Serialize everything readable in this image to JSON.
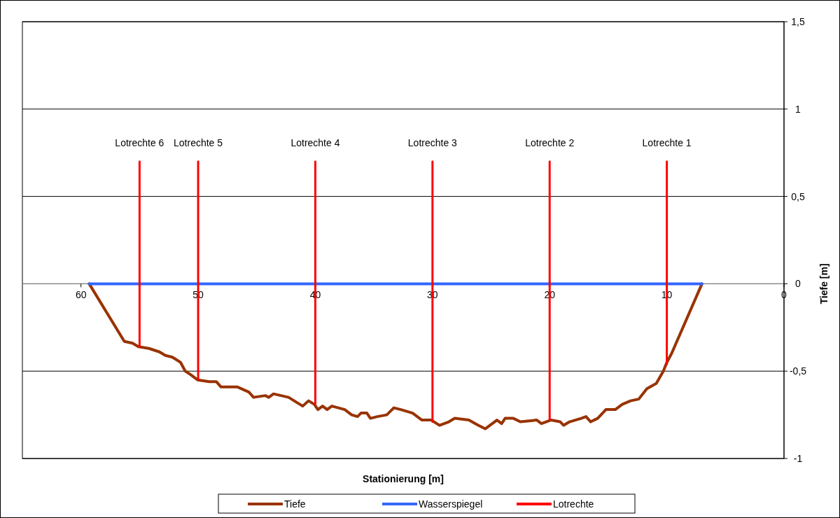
{
  "chart_data": {
    "type": "line",
    "xlabel": "Stationierung [m]",
    "ylabel": "Tiefe [m]",
    "xlim": [
      65,
      0
    ],
    "xticks": [
      60,
      50,
      40,
      30,
      20,
      10,
      0
    ],
    "ylim": [
      -1,
      1.5
    ],
    "yticks": [
      {
        "value": 1.5,
        "label": "1,5"
      },
      1,
      {
        "value": 0.5,
        "label": "0,5"
      },
      0,
      {
        "value": -0.5,
        "label": "-0,5"
      },
      -1
    ],
    "grid": "y",
    "legend": "bottom",
    "marker": "none",
    "line_style": "solid",
    "series": [
      {
        "name": "Tiefe",
        "color": "#993300",
        "x": [
          59.3,
          56.3,
          55.6,
          55.1,
          54.2,
          53.3,
          52.8,
          52.2,
          51.5,
          51.1,
          50.65,
          50.05,
          49.05,
          48.45,
          48.06,
          47.46,
          46.67,
          45.67,
          45.27,
          44.27,
          43.97,
          43.57,
          42.28,
          41.08,
          40.58,
          40.08,
          39.78,
          39.38,
          38.99,
          38.59,
          37.49,
          36.9,
          36.4,
          36.1,
          35.6,
          35.3,
          34.7,
          33.9,
          33.3,
          32.7,
          31.7,
          30.9,
          30.1,
          29.4,
          28.6,
          28.1,
          26.9,
          26.1,
          25.5,
          24.5,
          24.1,
          23.8,
          23.1,
          22.5,
          21.1,
          20.7,
          19.9,
          19.1,
          18.8,
          18.3,
          17.3,
          16.9,
          16.5,
          15.9,
          15.2,
          14.4,
          13.8,
          13.1,
          12.4,
          11.7,
          10.9,
          10.3,
          10.0,
          9.6,
          7.0
        ],
        "values": [
          0,
          -0.33,
          -0.34,
          -0.36,
          -0.37,
          -0.39,
          -0.41,
          -0.42,
          -0.45,
          -0.5,
          -0.52,
          -0.55,
          -0.56,
          -0.56,
          -0.59,
          -0.59,
          -0.59,
          -0.62,
          -0.65,
          -0.64,
          -0.65,
          -0.63,
          -0.65,
          -0.7,
          -0.67,
          -0.69,
          -0.72,
          -0.7,
          -0.72,
          -0.7,
          -0.72,
          -0.75,
          -0.76,
          -0.74,
          -0.74,
          -0.77,
          -0.76,
          -0.75,
          -0.71,
          -0.72,
          -0.74,
          -0.78,
          -0.78,
          -0.81,
          -0.79,
          -0.77,
          -0.78,
          -0.81,
          -0.83,
          -0.78,
          -0.8,
          -0.77,
          -0.77,
          -0.79,
          -0.78,
          -0.8,
          -0.78,
          -0.79,
          -0.81,
          -0.79,
          -0.77,
          -0.76,
          -0.79,
          -0.77,
          -0.72,
          -0.72,
          -0.69,
          -0.67,
          -0.66,
          -0.6,
          -0.57,
          -0.5,
          -0.45,
          -0.4,
          0
        ]
      },
      {
        "name": "Wasserspiegel",
        "color": "#3366ff",
        "x": [
          59.3,
          7.0
        ],
        "values": [
          0,
          0
        ]
      },
      {
        "name": "Lotrechte",
        "color": "#ff0000",
        "x": [
          55,
          55
        ],
        "values": [
          0.7,
          -0.36
        ]
      },
      {
        "color": "#ff0000",
        "x": [
          50,
          50
        ],
        "values": [
          0.7,
          -0.55
        ]
      },
      {
        "color": "#ff0000",
        "x": [
          40,
          40
        ],
        "values": [
          0.7,
          -0.69
        ]
      },
      {
        "color": "#ff0000",
        "x": [
          30,
          30
        ],
        "values": [
          0.7,
          -0.79
        ]
      },
      {
        "color": "#ff0000",
        "x": [
          20,
          20
        ],
        "values": [
          0.7,
          -0.78
        ]
      },
      {
        "color": "#ff0000",
        "x": [
          10,
          10
        ],
        "values": [
          0.7,
          -0.46
        ]
      }
    ],
    "annotations": [
      "Lotrechte 6",
      "Lotrechte 5",
      "Lotrechte 4",
      "Lotrechte 3",
      "Lotrechte 2",
      "Lotrechte 1"
    ]
  }
}
